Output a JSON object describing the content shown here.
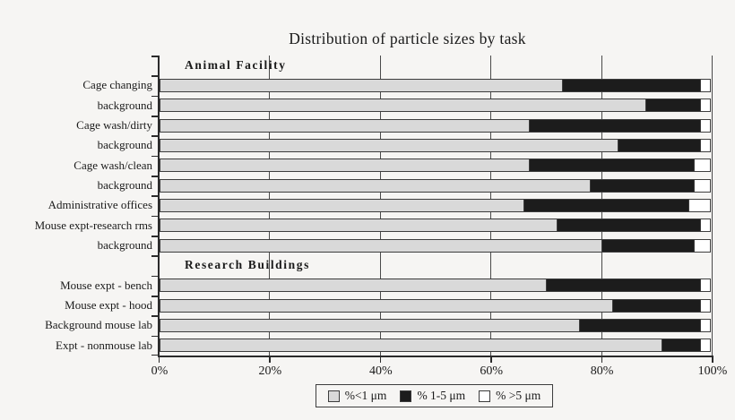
{
  "colors": {
    "background": "#f6f5f3",
    "series_fills": [
      "#d9d9d9",
      "#1c1c1c",
      "#ffffff"
    ],
    "axis": "#2b2b2b",
    "gridline": "#4a4a4a"
  },
  "chart_data": {
    "type": "bar",
    "orientation": "horizontal-stacked",
    "title": "Distribution of particle sizes by task",
    "xlabel": "",
    "ylabel": "",
    "xlim": [
      0,
      100
    ],
    "grid": "vertical-on",
    "legend_position": "bottom-center",
    "x_ticks": [
      {
        "label": "0%",
        "value": 0
      },
      {
        "label": "20%",
        "value": 20
      },
      {
        "label": "40%",
        "value": 40
      },
      {
        "label": "60%",
        "value": 60
      },
      {
        "label": "80%",
        "value": 80
      },
      {
        "label": "100%",
        "value": 100
      }
    ],
    "legend": [
      {
        "label": "%<1 μm",
        "series": "pct_lt_1um"
      },
      {
        "label": "% 1-5 μm",
        "series": "pct_1_5um"
      },
      {
        "label": "% >5 μm",
        "series": "pct_gt_5um"
      }
    ],
    "rows": [
      {
        "type": "header",
        "label": "Animal Facility"
      },
      {
        "type": "bar",
        "label": "Cage changing",
        "values": [
          73,
          25,
          2
        ]
      },
      {
        "type": "bar",
        "label": "background",
        "values": [
          88,
          10,
          2
        ]
      },
      {
        "type": "bar",
        "label": "Cage wash/dirty",
        "values": [
          67,
          31,
          2
        ]
      },
      {
        "type": "bar",
        "label": "background",
        "values": [
          83,
          15,
          2
        ]
      },
      {
        "type": "bar",
        "label": "Cage wash/clean",
        "values": [
          67,
          30,
          3
        ]
      },
      {
        "type": "bar",
        "label": "background",
        "values": [
          78,
          19,
          3
        ]
      },
      {
        "type": "bar",
        "label": "Administrative offices",
        "values": [
          66,
          30,
          4
        ]
      },
      {
        "type": "bar",
        "label": "Mouse expt-research rms",
        "values": [
          72,
          26,
          2
        ]
      },
      {
        "type": "bar",
        "label": "background",
        "values": [
          80,
          17,
          3
        ]
      },
      {
        "type": "header",
        "label": "Research Buildings"
      },
      {
        "type": "bar",
        "label": "Mouse expt - bench",
        "values": [
          70,
          28,
          2
        ]
      },
      {
        "type": "bar",
        "label": "Mouse expt - hood",
        "values": [
          82,
          16,
          2
        ]
      },
      {
        "type": "bar",
        "label": "Background mouse lab",
        "values": [
          76,
          22,
          2
        ]
      },
      {
        "type": "bar",
        "label": "Expt - nonmouse lab",
        "values": [
          91,
          7,
          2
        ]
      }
    ]
  }
}
